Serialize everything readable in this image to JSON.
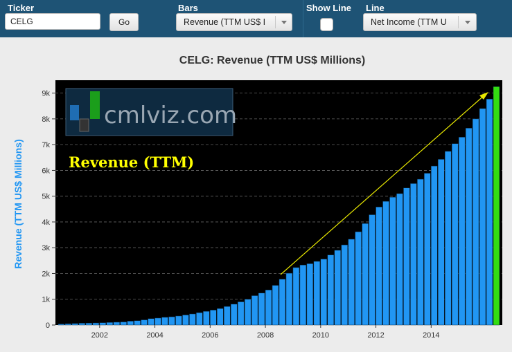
{
  "controls": {
    "ticker_label": "Ticker",
    "ticker_value": "CELG",
    "go_label": "Go",
    "bars_label": "Bars",
    "bars_value": "Revenue (TTM US$ I",
    "show_line_label": "Show Line",
    "line_label": "Line",
    "line_value": "Net Income (TTM U"
  },
  "watermark": {
    "text": "cmlviz.com"
  },
  "annotation": {
    "text": "Revenue (TTM)",
    "color": "#ffff00"
  },
  "colors": {
    "bar": "#2196f3",
    "bar_last": "#33dd11",
    "plot_bg": "#000000",
    "arrow": "#e8e800",
    "ylabel": "#2196f3"
  },
  "chart_data": {
    "type": "bar",
    "title": "CELG: Revenue (TTM US$ Millions)",
    "ylabel": "Revenue (TTM US$ Millions)",
    "xlabel": "",
    "ylim": [
      0,
      9500
    ],
    "yticks": [
      0,
      1000,
      2000,
      3000,
      4000,
      5000,
      6000,
      7000,
      8000,
      9000
    ],
    "ytick_labels": [
      "0",
      "1k",
      "2k",
      "3k",
      "4k",
      "5k",
      "6k",
      "7k",
      "8k",
      "9k"
    ],
    "xticks": [
      2002,
      2004,
      2006,
      2008,
      2010,
      2012,
      2014
    ],
    "x_first_quarter": "2000-Q3",
    "grid": "horizontal dashed",
    "highlight_last": true,
    "values": [
      40,
      50,
      60,
      70,
      75,
      80,
      90,
      100,
      110,
      120,
      150,
      170,
      200,
      250,
      270,
      300,
      320,
      350,
      390,
      430,
      480,
      530,
      580,
      640,
      720,
      810,
      900,
      1000,
      1140,
      1240,
      1360,
      1540,
      1780,
      2010,
      2230,
      2330,
      2380,
      2470,
      2560,
      2720,
      2900,
      3110,
      3330,
      3620,
      3940,
      4280,
      4580,
      4800,
      4960,
      5100,
      5320,
      5490,
      5660,
      5890,
      6170,
      6430,
      6740,
      7040,
      7290,
      7640,
      8000,
      8400,
      8770,
      9250
    ]
  }
}
